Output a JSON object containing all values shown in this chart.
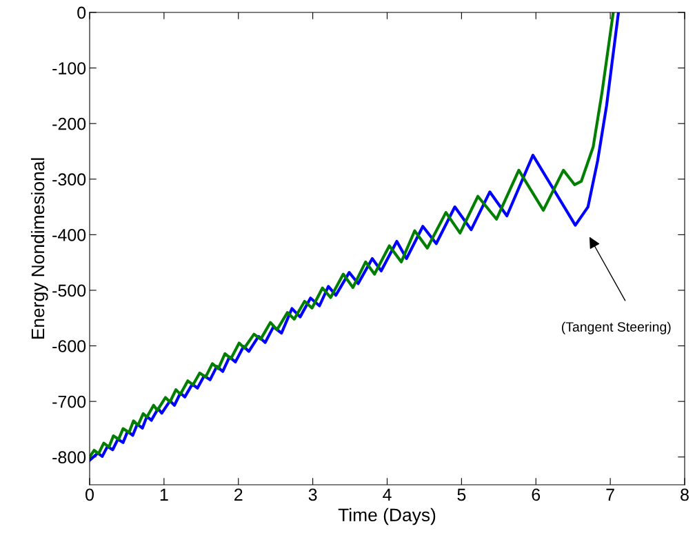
{
  "chart_data": {
    "type": "line",
    "xlabel": "Time (Days)",
    "ylabel": "Energy Nondimesional",
    "xlim": [
      0,
      8
    ],
    "xticks": [
      0,
      1,
      2,
      3,
      4,
      5,
      6,
      7,
      8
    ],
    "ylim": [
      -850,
      0
    ],
    "yticks": [
      -800,
      -700,
      -600,
      -500,
      -400,
      -300,
      -200,
      -100,
      0
    ],
    "grid": false,
    "marker": "none",
    "line_style": "solid",
    "annotations": [
      "(Tangent Steering)"
    ],
    "series": [
      {
        "color": "#0000ff",
        "x": [
          0,
          0.11,
          0.17,
          0.24,
          0.31,
          0.38,
          0.45,
          0.51,
          0.58,
          0.64,
          0.71,
          0.77,
          0.83,
          0.92,
          0.97,
          1.08,
          1.14,
          1.22,
          1.28,
          1.38,
          1.45,
          1.54,
          1.62,
          1.71,
          1.79,
          1.88,
          1.96,
          2.07,
          2.14,
          2.27,
          2.36,
          2.47,
          2.58,
          2.72,
          2.83,
          2.97,
          3.09,
          3.21,
          3.31,
          3.49,
          3.61,
          3.8,
          3.92,
          4.13,
          4.26,
          4.48,
          4.66,
          4.91,
          5.13,
          5.38,
          5.61,
          5.96,
          6.53,
          6.7,
          6.83,
          6.95,
          7.11
        ],
        "values": [
          -806,
          -793,
          -799,
          -781,
          -787,
          -768,
          -774,
          -754,
          -761,
          -741,
          -748,
          -727,
          -734,
          -713,
          -721,
          -699,
          -707,
          -685,
          -692,
          -669,
          -676,
          -654,
          -661,
          -637,
          -646,
          -620,
          -629,
          -601,
          -610,
          -583,
          -594,
          -566,
          -577,
          -533,
          -548,
          -514,
          -528,
          -493,
          -509,
          -468,
          -488,
          -443,
          -465,
          -412,
          -443,
          -385,
          -416,
          -350,
          -391,
          -323,
          -366,
          -257,
          -383,
          -350,
          -267,
          -168,
          0
        ]
      },
      {
        "color": "#007f00",
        "x": [
          0,
          0.06,
          0.12,
          0.19,
          0.26,
          0.32,
          0.39,
          0.45,
          0.53,
          0.59,
          0.65,
          0.72,
          0.77,
          0.86,
          0.91,
          1.02,
          1.08,
          1.16,
          1.22,
          1.32,
          1.39,
          1.48,
          1.56,
          1.65,
          1.73,
          1.82,
          1.9,
          2.01,
          2.08,
          2.21,
          2.3,
          2.43,
          2.52,
          2.66,
          2.75,
          2.89,
          2.99,
          3.13,
          3.24,
          3.41,
          3.54,
          3.71,
          3.83,
          4.03,
          4.19,
          4.37,
          4.54,
          4.79,
          4.98,
          5.22,
          5.47,
          5.77,
          6.1,
          6.37,
          6.52,
          6.61,
          6.77,
          6.89,
          7.04
        ],
        "values": [
          -800,
          -788,
          -794,
          -775,
          -782,
          -762,
          -768,
          -749,
          -756,
          -735,
          -743,
          -722,
          -728,
          -707,
          -716,
          -693,
          -701,
          -679,
          -687,
          -663,
          -670,
          -649,
          -656,
          -632,
          -641,
          -614,
          -623,
          -595,
          -604,
          -579,
          -588,
          -558,
          -571,
          -540,
          -552,
          -520,
          -532,
          -496,
          -513,
          -471,
          -495,
          -449,
          -471,
          -420,
          -449,
          -393,
          -424,
          -360,
          -397,
          -331,
          -372,
          -284,
          -356,
          -284,
          -310,
          -304,
          -242,
          -143,
          0
        ]
      }
    ]
  }
}
